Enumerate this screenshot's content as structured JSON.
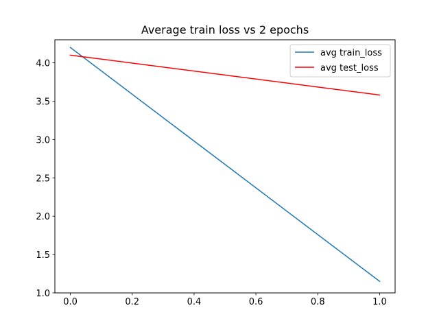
{
  "chart_data": {
    "type": "line",
    "title": "Average train loss vs 2 epochs",
    "xlabel": "",
    "ylabel": "",
    "xlim": [
      -0.05,
      1.05
    ],
    "ylim": [
      1.0,
      4.3
    ],
    "xticks": [
      0.0,
      0.2,
      0.4,
      0.6,
      0.8,
      1.0
    ],
    "xtick_labels": [
      "0.0",
      "0.2",
      "0.4",
      "0.6",
      "0.8",
      "1.0"
    ],
    "yticks": [
      1.0,
      1.5,
      2.0,
      2.5,
      3.0,
      3.5,
      4.0
    ],
    "ytick_labels": [
      "1.0",
      "1.5",
      "2.0",
      "2.5",
      "3.0",
      "3.5",
      "4.0"
    ],
    "grid": false,
    "legend_position": "top-right",
    "series": [
      {
        "name": "avg train_loss",
        "color": "#1f77b4",
        "x": [
          0,
          1
        ],
        "y": [
          4.2,
          1.15
        ]
      },
      {
        "name": "avg test_loss",
        "color": "#ff0000",
        "x": [
          0,
          1
        ],
        "y": [
          4.1,
          3.58
        ]
      }
    ]
  }
}
